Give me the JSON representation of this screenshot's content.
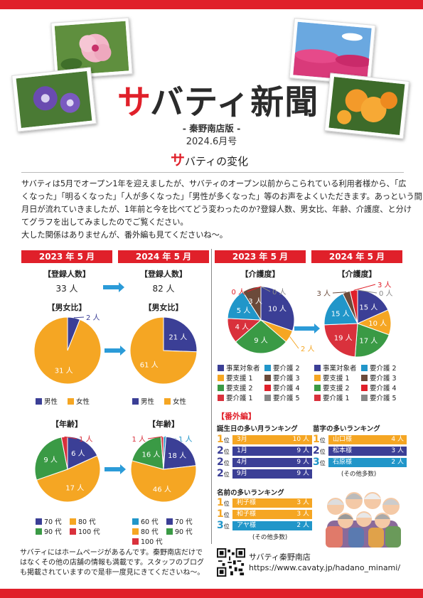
{
  "header": {
    "title_accent": "サ",
    "title_rest": "バティ新聞",
    "edition": "- 秦野南店版 -",
    "issue": "2024.6月号"
  },
  "section": {
    "head_accent": "サ",
    "head_rest": "バティの変化"
  },
  "intro": [
    "サバティは5月でオープン1年を迎えましたが、サバティのオープン以前からこられている利用者様から、「広",
    "くなった」「明るくなった」「人が多くなった」「男性が多くなった」等のお声をよくいただきます。あっという間に",
    "月日が流れていきましたが、1年前と今を比べてどう変わったのか?登録人数、男女比、年齢、介護度、と分け",
    "てグラフを出してみましたのでご覧ください。",
    "大した関係はありませんが、番外編も見てくださいね〜。"
  ],
  "columns": {
    "h2023": "2023 年 5 月",
    "h2024": "2024 年 5 月",
    "h2023b": "2023 年 5 月",
    "h2024b": "2024 年 5 月"
  },
  "registered": {
    "label": "【登録人数】",
    "v2023": "33 人",
    "v2024": "82 人"
  },
  "gender": {
    "label": "【男女比】",
    "legend": [
      "男性",
      "女性"
    ]
  },
  "age": {
    "label": "【年齢】",
    "legend2023": [
      "70 代",
      "80 代",
      "90 代",
      "100 代"
    ],
    "legend2024": [
      "60 代",
      "70 代",
      "80 代",
      "90 代",
      "100 代"
    ]
  },
  "care": {
    "label": "【介護度】",
    "legend": [
      "事業対象者",
      "要介護 2",
      "要支援 1",
      "要介護 3",
      "要支援 2",
      "要介護 4",
      "要介護 1",
      "要介護 5"
    ]
  },
  "colors": {
    "red": "#e0202a",
    "blue": "#3b3f96",
    "orange": "#f5a623",
    "green": "#3a9a45",
    "crimson": "#d9313c",
    "teal": "#2196c9",
    "brown": "#6b4a3a",
    "gray": "#888888",
    "arrow": "#2b9bd8"
  },
  "chart_data": [
    {
      "type": "pie",
      "title": "【男女比】 2023 年 5 月",
      "categories": [
        "男性",
        "女性"
      ],
      "values": [
        2,
        31
      ]
    },
    {
      "type": "pie",
      "title": "【男女比】 2024 年 5 月",
      "categories": [
        "男性",
        "女性"
      ],
      "values": [
        21,
        61
      ]
    },
    {
      "type": "pie",
      "title": "【年齢】 2023 年 5 月",
      "categories": [
        "70 代",
        "80 代",
        "90 代",
        "100 代"
      ],
      "values": [
        6,
        17,
        9,
        1
      ]
    },
    {
      "type": "pie",
      "title": "【年齢】 2024 年 5 月",
      "categories": [
        "60 代",
        "70 代",
        "80 代",
        "90 代",
        "100 代"
      ],
      "values": [
        1,
        18,
        46,
        16,
        1
      ]
    },
    {
      "type": "pie",
      "title": "【介護度】 2023 年 5 月",
      "categories": [
        "事業対象者",
        "要支援 1",
        "要支援 2",
        "要介護 1",
        "要介護 2",
        "要介護 3",
        "要介護 4",
        "要介護 5"
      ],
      "values": [
        10,
        2,
        9,
        4,
        5,
        3,
        0,
        0
      ]
    },
    {
      "type": "pie",
      "title": "【介護度】 2024 年 5 月",
      "categories": [
        "事業対象者",
        "要支援 1",
        "要支援 2",
        "要介護 1",
        "要介護 2",
        "要介護 3",
        "要介護 4",
        "要介護 5"
      ],
      "values": [
        15,
        10,
        17,
        19,
        15,
        3,
        3,
        0
      ]
    }
  ],
  "pie_labels": {
    "g23": [
      "2 人",
      "31 人"
    ],
    "g24": [
      "21 人",
      "61 人"
    ],
    "a23": [
      "6 人",
      "17 人",
      "9 人",
      "1 人"
    ],
    "a24": [
      "1 人",
      "18 人",
      "46 人",
      "16 人",
      "1 人"
    ],
    "c23": [
      "10 人",
      "2 人",
      "9 人",
      "4 人",
      "5 人",
      "3 人",
      "0 人",
      "0 人"
    ],
    "c24": [
      "15 人",
      "10 人",
      "17 人",
      "19 人",
      "15 人",
      "3 人",
      "3 人",
      "0 人"
    ]
  },
  "extra": {
    "badge": "【番外編】",
    "birth": {
      "title": "誕生日の多い月ランキング",
      "rows": [
        {
          "rank": "1",
          "unit": "位",
          "name": "3月",
          "count": "10 人"
        },
        {
          "rank": "2",
          "unit": "位",
          "name": "1月",
          "count": "9 人"
        },
        {
          "rank": "2",
          "unit": "位",
          "name": "4月",
          "count": "9 人"
        },
        {
          "rank": "2",
          "unit": "位",
          "name": "9月",
          "count": "9 人"
        }
      ]
    },
    "surname": {
      "title": "苗字の多いランキング",
      "rows": [
        {
          "rank": "1",
          "unit": "位",
          "name": "山口様",
          "count": "4 人"
        },
        {
          "rank": "2",
          "unit": "位",
          "name": "松本様",
          "count": "3 人"
        },
        {
          "rank": "3",
          "unit": "位",
          "name": "石原様",
          "count": "2 人"
        }
      ],
      "note": "(その他多数)"
    },
    "firstname": {
      "title": "名前の多いランキング",
      "rows": [
        {
          "rank": "1",
          "unit": "位",
          "name": "利子様",
          "count": "3 人"
        },
        {
          "rank": "1",
          "unit": "位",
          "name": "和子様",
          "count": "3 人"
        },
        {
          "rank": "3",
          "unit": "位",
          "name": "アヤ様",
          "count": "2 人"
        }
      ],
      "note": "(その他多数)"
    }
  },
  "footer": {
    "text": [
      "サバティにはホームページがあるんです。秦野南店だけで",
      "はなくその他の店舗の情報も満載です。スタッフのブログ",
      "も掲載されていますので是非一度見にきてくださいね〜。"
    ],
    "shop": "サバティ秦野南店",
    "url": "https://www.cavaty.jp/hadano_minami/"
  }
}
